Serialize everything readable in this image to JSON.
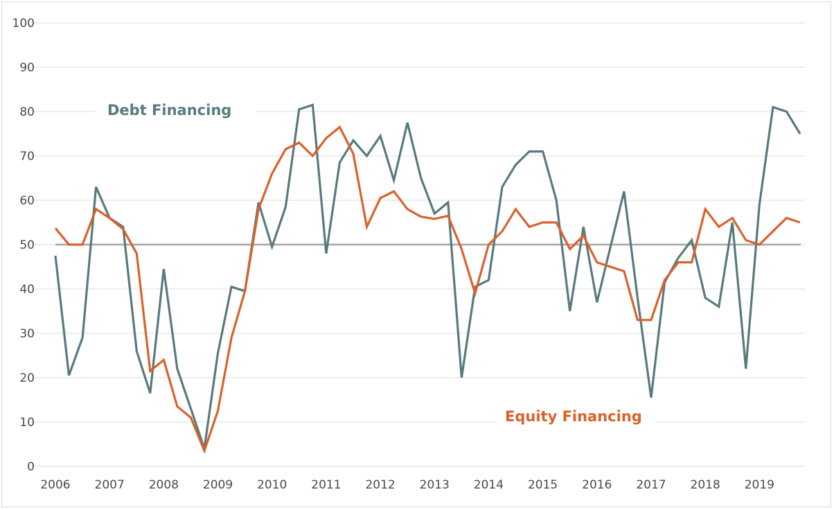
{
  "chart_data": {
    "type": "line",
    "title": "",
    "xlabel": "",
    "ylabel": "",
    "ylim": [
      0,
      100
    ],
    "yticks": [
      "0",
      "10",
      "20",
      "30",
      "40",
      "50",
      "60",
      "70",
      "80",
      "90",
      "100"
    ],
    "xticks": [
      "2006",
      "2007",
      "2008",
      "2009",
      "2010",
      "2011",
      "2012",
      "2013",
      "2014",
      "2015",
      "2016",
      "2017",
      "2018",
      "2019"
    ],
    "x_start": 2006,
    "x_frequency": "quarterly",
    "grid": true,
    "reference_line": 50,
    "series": [
      {
        "name": "Debt Financing",
        "color": "#587a7f",
        "values": [
          47.5,
          20.5,
          29,
          63,
          56,
          54,
          26,
          16.5,
          44.5,
          22,
          13,
          4,
          25.5,
          40.5,
          39.5,
          59.5,
          49.5,
          58.5,
          80.5,
          81.5,
          48,
          68.5,
          73.5,
          70,
          74.5,
          64.5,
          77.5,
          65,
          57,
          59.5,
          20,
          40.5,
          42,
          63,
          68,
          71,
          71,
          60,
          35,
          54,
          37,
          49.5,
          62,
          38,
          15.5,
          41.5,
          47,
          51,
          38,
          36,
          55,
          22,
          59,
          81,
          80,
          75
        ]
      },
      {
        "name": "Equity Financing",
        "color": "#d9622b",
        "values": [
          53.7,
          50,
          50,
          58,
          56,
          53.5,
          48,
          21.5,
          24,
          13.5,
          11,
          3.5,
          12.5,
          29,
          39.5,
          58,
          66,
          71.5,
          73,
          70,
          74,
          76.5,
          70.5,
          54,
          60.5,
          62,
          58,
          56.3,
          55.8,
          56.5,
          49,
          39,
          50,
          53,
          58,
          54,
          55,
          55,
          49,
          52,
          46,
          45,
          44,
          33,
          33,
          42,
          46,
          46,
          58,
          54,
          56,
          51,
          50,
          53,
          56,
          55
        ]
      }
    ],
    "reference_color": "#a6a6a6"
  }
}
